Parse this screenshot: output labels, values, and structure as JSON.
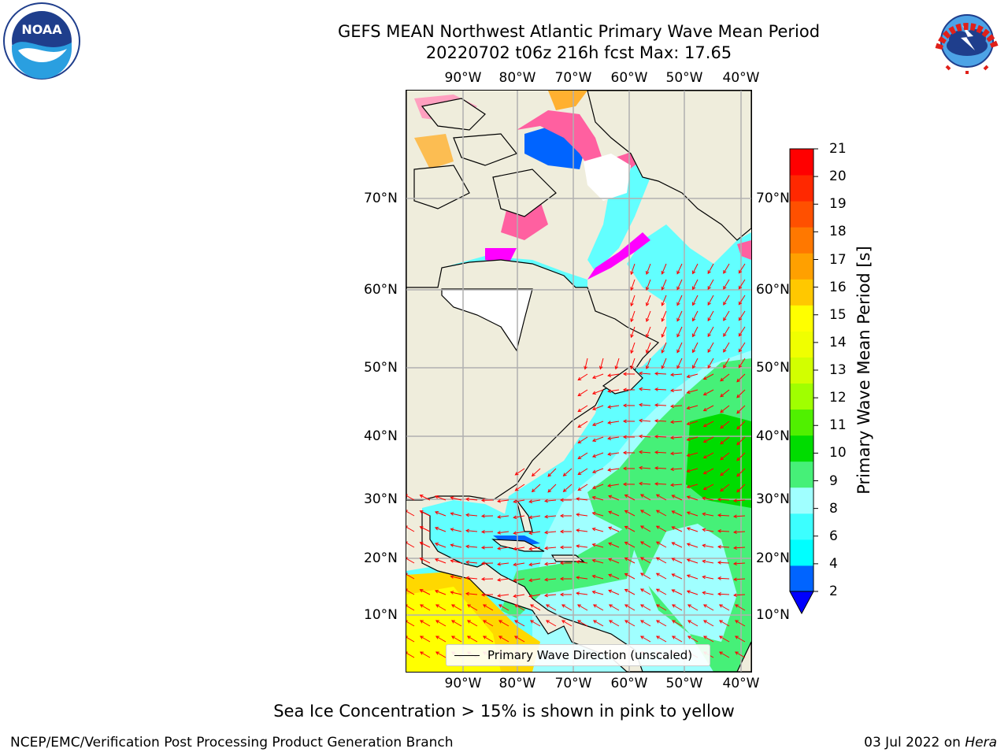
{
  "title": {
    "line1": "GEFS MEAN Northwest Atlantic Primary Wave Mean Period",
    "line2": "20220702 t06z 216h fcst   Max: 17.65"
  },
  "map": {
    "type": "map",
    "region": "Northwest Atlantic",
    "extent": {
      "lon": [
        -100,
        -37
      ],
      "lat": [
        0,
        80
      ]
    },
    "gridlines": "on",
    "land_color": "#efeddc",
    "vector_color": "#ff0000",
    "lon_ticks": [
      "90°W",
      "80°W",
      "70°W",
      "60°W",
      "50°W",
      "40°W"
    ],
    "lat_ticks": [
      "70°N",
      "60°N",
      "50°N",
      "40°N",
      "30°N",
      "20°N",
      "10°N"
    ],
    "legend": {
      "label": "Primary Wave Direction (unscaled)",
      "placement": "bottom-center"
    }
  },
  "colorbar": {
    "label": "Primary Wave Mean Period [s]",
    "tick_labels": [
      "21",
      "20",
      "19",
      "18",
      "17",
      "16",
      "15",
      "14",
      "13",
      "12",
      "11",
      "10",
      "9",
      "8",
      "6",
      "4",
      "2"
    ],
    "levels": [
      2,
      4,
      6,
      8,
      9,
      10,
      11,
      12,
      13,
      14,
      15,
      16,
      17,
      18,
      19,
      20,
      21
    ],
    "colors": [
      "#0064ff",
      "#00ffff",
      "#3cffff",
      "#a0ffff",
      "#46f078",
      "#00dc00",
      "#50f000",
      "#a0ff00",
      "#d2ff00",
      "#f0ff00",
      "#ffff00",
      "#ffc800",
      "#ffa000",
      "#ff7800",
      "#ff5000",
      "#ff2800",
      "#ff0000"
    ],
    "extend_min_color": "#0000ff"
  },
  "sea_ice": {
    "colors": [
      "#ff00ff",
      "#ff60a0",
      "#ffa0c0",
      "#ffb030",
      "#ffe000"
    ]
  },
  "sea_ice_note": "Sea Ice Concentration > 15% is shown in pink to yellow",
  "footer": {
    "left": "NCEP/EMC/Verification Post Processing Product Generation Branch",
    "right_prefix": "03 Jul 2022 on ",
    "right_host": "Hera"
  },
  "logos": {
    "left": "noaa-logo",
    "right": "nws-logo"
  }
}
